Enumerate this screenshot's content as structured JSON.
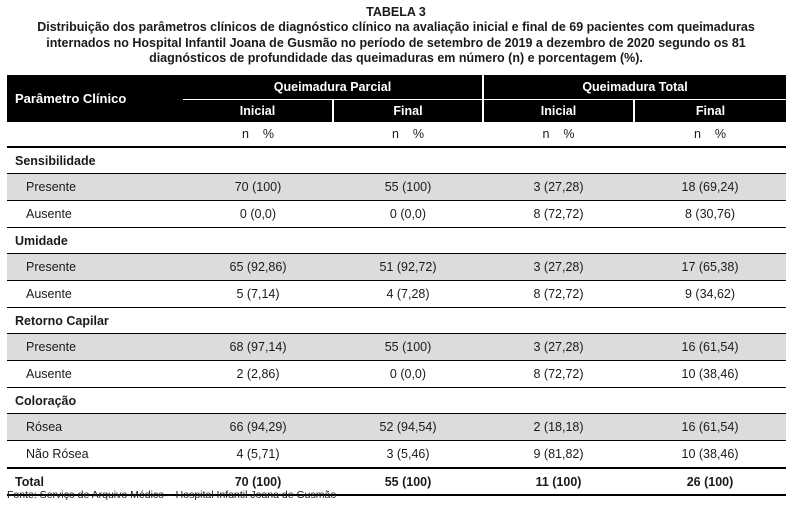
{
  "caption": {
    "label": "TABELA 3",
    "text": "Distribuição dos parâmetros clínicos de diagnóstico clínico na avaliação inicial e final de 69 pacientes com queimaduras internados no Hospital Infantil Joana de Gusmão no período de setembro de 2019 a dezembro de 2020 segundo os 81 diagnósticos de profundidade das queimaduras em número (n) e porcentagem (%)."
  },
  "header": {
    "param": "Parâmetro Clínico",
    "group1": "Queimadura Parcial",
    "group2": "Queimadura Total",
    "initial": "Inicial",
    "final": "Final",
    "n": "n",
    "pct": "%"
  },
  "groups": [
    {
      "title": "Sensibilidade",
      "rows": [
        {
          "label": "Presente",
          "values": [
            "70 (100)",
            "55 (100)",
            "3 (27,28)",
            "18 (69,24)"
          ]
        },
        {
          "label": "Ausente",
          "values": [
            "0 (0,0)",
            "0 (0,0)",
            "8 (72,72)",
            "8 (30,76)"
          ]
        }
      ]
    },
    {
      "title": "Umidade",
      "rows": [
        {
          "label": "Presente",
          "values": [
            "65 (92,86)",
            "51 (92,72)",
            "3 (27,28)",
            "17 (65,38)"
          ]
        },
        {
          "label": "Ausente",
          "values": [
            "5 (7,14)",
            "4 (7,28)",
            "8 (72,72)",
            "9 (34,62)"
          ]
        }
      ]
    },
    {
      "title": "Retorno Capilar",
      "rows": [
        {
          "label": "Presente",
          "values": [
            "68 (97,14)",
            "55 (100)",
            "3 (27,28)",
            "16 (61,54)"
          ]
        },
        {
          "label": "Ausente",
          "values": [
            "2 (2,86)",
            "0 (0,0)",
            "8 (72,72)",
            "10 (38,46)"
          ]
        }
      ]
    },
    {
      "title": "Coloração",
      "rows": [
        {
          "label": "Rósea",
          "values": [
            "66 (94,29)",
            "52 (94,54)",
            "2 (18,18)",
            "16 (61,54)"
          ]
        },
        {
          "label": "Não Rósea",
          "values": [
            "4 (5,71)",
            "3 (5,46)",
            "9 (81,82)",
            "10 (38,46)"
          ]
        }
      ]
    }
  ],
  "total": {
    "label": "Total",
    "values": [
      "70 (100)",
      "55 (100)",
      "11 (100)",
      "26 (100)"
    ]
  },
  "source": "Fonte: Serviço de Arquivo Médico – Hospital Infantil Joana de Gusmão"
}
